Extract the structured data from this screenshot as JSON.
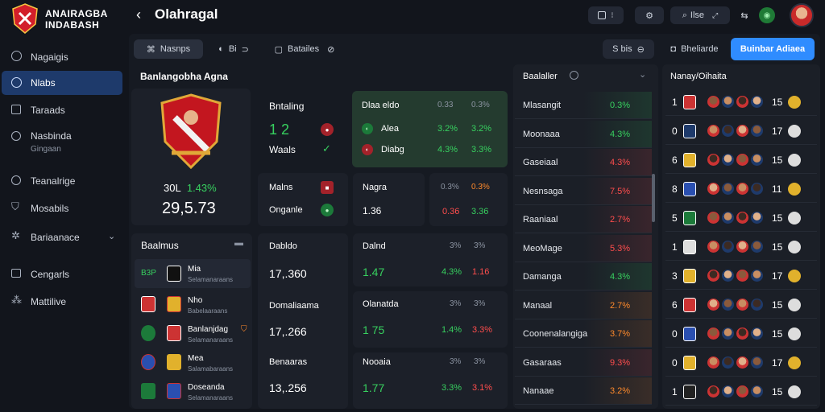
{
  "app": {
    "brand_line1": "ANAIRAGBA",
    "brand_line2": "INDABASH",
    "title": "Olahragal"
  },
  "header": {
    "search_label": "Ilse"
  },
  "sidebar": {
    "items": [
      {
        "label": "Nagaigis",
        "icon": "user-icon"
      },
      {
        "label": "Nlabs",
        "icon": "globe-icon",
        "active": true
      },
      {
        "label": "Taraads",
        "icon": "box-icon"
      },
      {
        "label": "Nasbinda",
        "sub": "Gingaan",
        "icon": "clock-icon"
      },
      {
        "label": "Teanalrige",
        "icon": "globe-icon"
      },
      {
        "label": "Mosabils",
        "icon": "shield-icon"
      },
      {
        "label": "Bariaanace",
        "icon": "gear-icon"
      },
      {
        "label": "Cengarls",
        "icon": "list-icon"
      },
      {
        "label": "Mattilive",
        "icon": "grid-icon"
      }
    ]
  },
  "toolbar": {
    "tab1": "Nasnps",
    "tab2": "Bi",
    "tab3": "Batailes",
    "right_btn1": "S bis",
    "right_btn2": "Bheliarde",
    "primary": "Buinbar Adiaea"
  },
  "featured": {
    "title": "Banlangobha Agna",
    "stat_label": "30L",
    "stat_pct": "1.43%",
    "stat_value": "29,5.73"
  },
  "betting": {
    "title": "Bntaling",
    "score": "1 2",
    "label": "Waals"
  },
  "odds_box": {
    "title": "Dlaa eldo",
    "col1": "0.33",
    "col2": "0.3%",
    "rows": [
      {
        "name": "Alea",
        "v1": "3.2%",
        "v2": "3.2%"
      },
      {
        "name": "Diabg",
        "v1": "4.3%",
        "v2": "3.3%"
      }
    ]
  },
  "mid_row": {
    "c1_title": "Malns",
    "c1_sub": "Onganle",
    "c2_title": "Nagra",
    "c2_value": "1.36",
    "c3_v1": "0.3%",
    "c3_v2": "0.3%",
    "c3_v3": "0.36",
    "c3_v4": "3.36"
  },
  "rankings": {
    "title": "Baalmus",
    "rows": [
      {
        "code": "B3P",
        "name": "Mia",
        "sub": "Selamanaraans"
      },
      {
        "code": "",
        "name": "Nho",
        "sub": "Babelaaraans"
      },
      {
        "code": "",
        "name": "Banlanjdag",
        "sub": "Selamanaraans"
      },
      {
        "code": "",
        "name": "Mea",
        "sub": "Salamabaraans"
      },
      {
        "code": "",
        "name": "Doseanda",
        "sub": "Selamanaraans"
      }
    ]
  },
  "stats_col1": [
    {
      "title": "Dabldo",
      "value": "17,.360"
    },
    {
      "title": "Domaliaama",
      "value": "17,.266"
    },
    {
      "title": "Benaaras",
      "value": "13,.256"
    }
  ],
  "stats_col2": [
    {
      "title": "Dalnd",
      "h1": "3%",
      "h2": "3%",
      "value": "1.47",
      "v2": "4.3%",
      "v3": "1.16"
    },
    {
      "title": "Olanatda",
      "h1": "3%",
      "h2": "3%",
      "value": "1 75",
      "v2": "1.4%",
      "v3": "3.3%"
    },
    {
      "title": "Nooaia",
      "h1": "3%",
      "h2": "3%",
      "value": "1.77",
      "v2": "3.3%",
      "v3": "3.1%"
    }
  ],
  "market": {
    "title": "Baalaller",
    "rows": [
      {
        "name": "Mlasangit",
        "val": "0.3%",
        "color": "#37d05f"
      },
      {
        "name": "Moonaaa",
        "val": "4.3%",
        "color": "#37d05f"
      },
      {
        "name": "Gaseiaal",
        "val": "4.3%",
        "color": "#ff4d4d"
      },
      {
        "name": "Nesnsaga",
        "val": "7.5%",
        "color": "#ff4d4d"
      },
      {
        "name": "Raaniaal",
        "val": "2.7%",
        "color": "#ff4d4d"
      },
      {
        "name": "MeoMage",
        "val": "5.3%",
        "color": "#ff4d4d"
      },
      {
        "name": "Damanga",
        "val": "4.3%",
        "color": "#37d05f"
      },
      {
        "name": "Manaal",
        "val": "2.7%",
        "color": "#ff8a2b"
      },
      {
        "name": "Coonenalangiga",
        "val": "3.7%",
        "color": "#ff8a2b"
      },
      {
        "name": "Gasaraas",
        "val": "9.3%",
        "color": "#ff4d4d"
      },
      {
        "name": "Nanaae",
        "val": "3.2%",
        "color": "#ff8a2b"
      }
    ]
  },
  "league": {
    "title": "Nanay/Oihaita",
    "rows": [
      {
        "n": "1",
        "s": "15"
      },
      {
        "n": "0",
        "s": "17"
      },
      {
        "n": "6",
        "s": "15"
      },
      {
        "n": "8",
        "s": "11"
      },
      {
        "n": "5",
        "s": "15"
      },
      {
        "n": "1",
        "s": "15"
      },
      {
        "n": "3",
        "s": "17"
      },
      {
        "n": "6",
        "s": "15"
      },
      {
        "n": "0",
        "s": "15"
      },
      {
        "n": "0",
        "s": "17"
      },
      {
        "n": "1",
        "s": "15"
      }
    ]
  }
}
